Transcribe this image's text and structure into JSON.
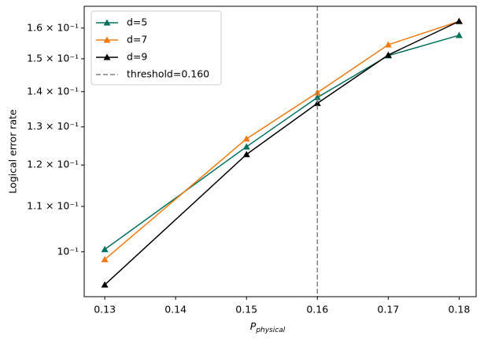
{
  "chart_data": {
    "type": "line",
    "y_label": "Logical error rate",
    "x_label": "P",
    "x_label_subscript": "physical",
    "x": [
      0.13,
      0.15,
      0.16,
      0.17,
      0.18
    ],
    "series": [
      {
        "name": "d=5",
        "color": "#00705f",
        "values": [
          0.1005,
          0.1247,
          0.1383,
          0.151,
          0.1576
        ]
      },
      {
        "name": "d=7",
        "color": "#f27a12",
        "values": [
          0.0984,
          0.1268,
          0.1397,
          0.1545,
          0.1623
        ]
      },
      {
        "name": "d=9",
        "color": "#000000",
        "values": [
          0.0933,
          0.1227,
          0.1366,
          0.1512,
          0.1623
        ]
      }
    ],
    "threshold": {
      "value": 0.16,
      "label": "threshold=0.160",
      "color": "#808080"
    },
    "xlim": [
      0.1271,
      0.1824
    ],
    "ylim": [
      0.091,
      0.1675
    ],
    "xticks": [
      0.13,
      0.14,
      0.15,
      0.16,
      0.17,
      0.18
    ],
    "yticks": [
      {
        "value": 0.1,
        "label": "10⁻¹"
      },
      {
        "value": 0.11,
        "label": "1.1 × 10⁻¹"
      },
      {
        "value": 0.12,
        "label": "1.2 × 10⁻¹"
      },
      {
        "value": 0.13,
        "label": "1.3 × 10⁻¹"
      },
      {
        "value": 0.14,
        "label": "1.4 × 10⁻¹"
      },
      {
        "value": 0.15,
        "label": "1.5 × 10⁻¹"
      },
      {
        "value": 0.16,
        "label": "1.6 × 10⁻¹"
      }
    ],
    "y_log": true,
    "legend": "upper left"
  }
}
